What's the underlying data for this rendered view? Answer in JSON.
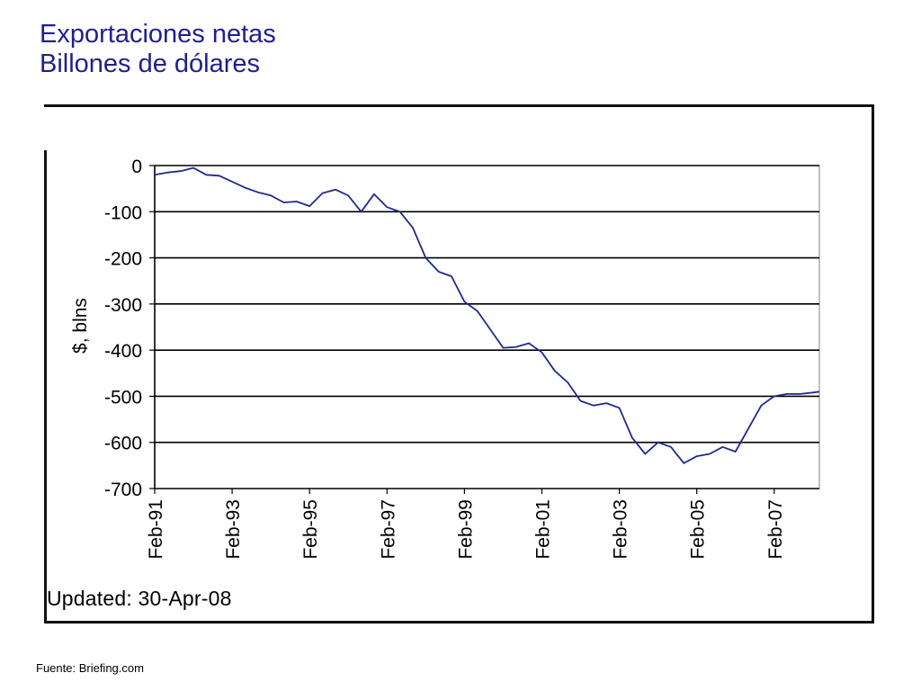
{
  "slide": {
    "title_line1": "Exportaciones netas",
    "title_line2": "Billones de dólares",
    "source": "Fuente: Briefing.com"
  },
  "chart": {
    "updated_label": "Updated: 30-Apr-08",
    "line_color": "#1f2a8c",
    "grid_color": "#000000"
  },
  "chart_data": {
    "type": "line",
    "title": "",
    "xlabel": "",
    "ylabel": "$, blns",
    "ylim": [
      -700,
      0
    ],
    "yticks": [
      0,
      -100,
      -200,
      -300,
      -400,
      -500,
      -600,
      -700
    ],
    "ytick_labels": [
      "0",
      "-100",
      "-200",
      "-300",
      "-400",
      "-500",
      "-600",
      "-700"
    ],
    "xticks": [
      "Feb-91",
      "Feb-93",
      "Feb-95",
      "Feb-97",
      "Feb-99",
      "Feb-01",
      "Feb-03",
      "Feb-05",
      "Feb-07"
    ],
    "xlim": [
      "Feb-91",
      "Apr-08"
    ],
    "grid": "horizontal",
    "series": [
      {
        "name": "",
        "x": [
          "Feb-91",
          "Jun-91",
          "Oct-91",
          "Feb-92",
          "Jun-92",
          "Oct-92",
          "Feb-93",
          "Jun-93",
          "Oct-93",
          "Feb-94",
          "Jun-94",
          "Oct-94",
          "Feb-95",
          "Jun-95",
          "Oct-95",
          "Feb-96",
          "Jun-96",
          "Oct-96",
          "Feb-97",
          "Jun-97",
          "Oct-97",
          "Feb-98",
          "Jun-98",
          "Oct-98",
          "Feb-99",
          "Jun-99",
          "Oct-99",
          "Feb-00",
          "Jun-00",
          "Oct-00",
          "Feb-01",
          "Jun-01",
          "Oct-01",
          "Feb-02",
          "Jun-02",
          "Oct-02",
          "Feb-03",
          "Jun-03",
          "Oct-03",
          "Feb-04",
          "Jun-04",
          "Oct-04",
          "Feb-05",
          "Jun-05",
          "Oct-05",
          "Feb-06",
          "Jun-06",
          "Oct-06",
          "Feb-07",
          "Jun-07",
          "Oct-07",
          "Feb-08",
          "Apr-08"
        ],
        "y": [
          -20,
          -15,
          -12,
          -5,
          -20,
          -22,
          -35,
          -48,
          -58,
          -65,
          -80,
          -78,
          -88,
          -60,
          -52,
          -65,
          -100,
          -62,
          -90,
          -100,
          -135,
          -200,
          -230,
          -240,
          -295,
          -315,
          -355,
          -395,
          -393,
          -385,
          -405,
          -445,
          -470,
          -510,
          -520,
          -515,
          -525,
          -590,
          -625,
          -600,
          -610,
          -645,
          -630,
          -625,
          -610,
          -620,
          -570,
          -520,
          -500,
          -495,
          -495,
          -492,
          -490
        ]
      }
    ]
  }
}
